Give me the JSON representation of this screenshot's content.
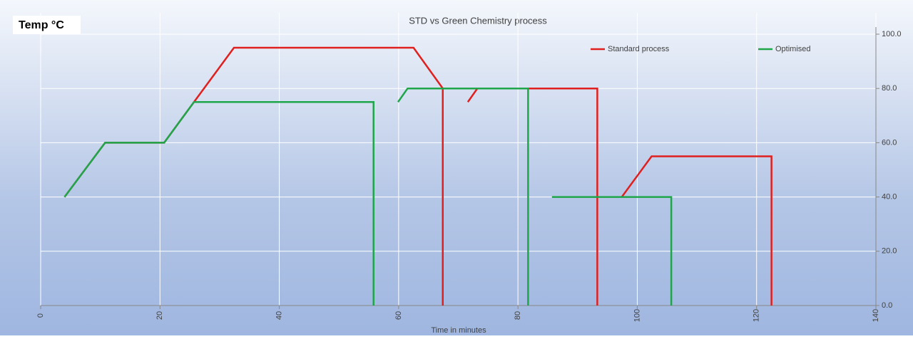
{
  "chart_data": {
    "type": "line",
    "title": "STD vs Green Chemistry process",
    "ylabel": "Temp °C",
    "xlabel": "Time in minutes",
    "xlim": [
      0,
      140
    ],
    "xticks": [
      0,
      20,
      40,
      60,
      80,
      100,
      120,
      140
    ],
    "ylim": [
      0,
      100
    ],
    "yticks": [
      {
        "value": 0,
        "label": "0.0"
      },
      {
        "value": 20,
        "label": "20.0"
      },
      {
        "value": 40,
        "label": "40.0"
      },
      {
        "value": 60,
        "label": "60.0"
      },
      {
        "value": 80,
        "label": "80.0"
      },
      {
        "value": 100,
        "label": "100.0"
      }
    ],
    "grid": true,
    "legend": "top right",
    "series": [
      {
        "name": "Standard process",
        "color": "#e0201e",
        "x": [
          4,
          10.8,
          20.7,
          25.7,
          32.4,
          62.5,
          67.4,
          67.4,
          null,
          71.6,
          73.2,
          93.3,
          93.3,
          null,
          97.4,
          102.4,
          122.5,
          122.5
        ],
        "values": [
          40,
          60,
          60,
          75,
          95,
          95,
          80,
          0,
          null,
          75,
          80,
          80,
          0,
          null,
          40,
          55,
          55,
          0
        ]
      },
      {
        "name": "Optimised",
        "color": "#1fa64a",
        "x": [
          4,
          10.8,
          20.7,
          25.7,
          55.8,
          55.8,
          null,
          59.9,
          61.5,
          81.7,
          81.7,
          null,
          85.7,
          105.7,
          105.7
        ],
        "values": [
          40,
          60,
          60,
          75,
          75,
          0,
          null,
          75,
          80,
          80,
          0,
          null,
          40,
          40,
          0
        ]
      }
    ]
  }
}
